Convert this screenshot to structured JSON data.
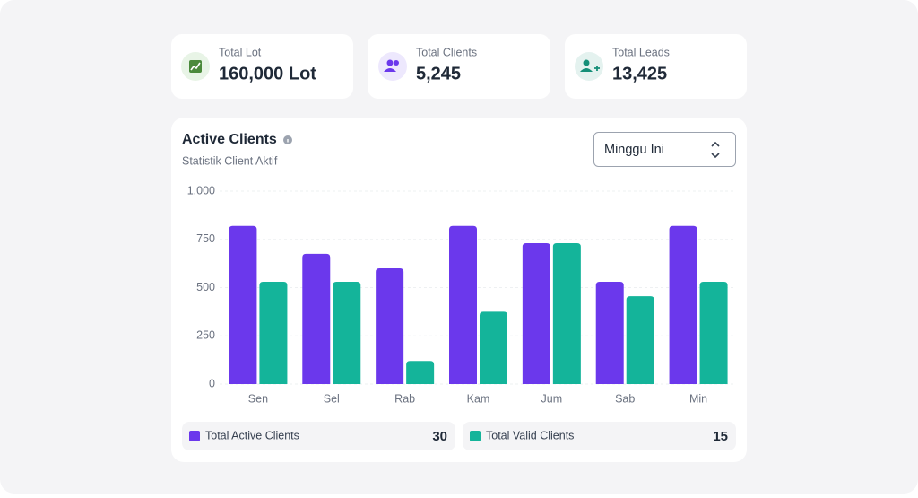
{
  "stats": [
    {
      "label": "Total Lot",
      "value": "160,000 Lot"
    },
    {
      "label": "Total Clients",
      "value": "5,245"
    },
    {
      "label": "Total Leads",
      "value": "13,425"
    }
  ],
  "dropdown": "Minggu Ini",
  "chart_data": {
    "type": "bar",
    "title": "Active Clients",
    "subtitle": "Statistik Client Aktif",
    "categories": [
      "Sen",
      "Sel",
      "Rab",
      "Kam",
      "Jum",
      "Sab",
      "Min"
    ],
    "series": [
      {
        "name": "Total Active Clients",
        "color": "#6b38ec",
        "total": 30,
        "values": [
          820,
          675,
          600,
          820,
          730,
          530,
          820
        ]
      },
      {
        "name": "Total Valid Clients",
        "color": "#14b49a",
        "total": 15,
        "values": [
          530,
          530,
          120,
          375,
          730,
          455,
          530
        ]
      }
    ],
    "ylim": [
      0,
      1000
    ],
    "yticks": [
      0,
      250,
      500,
      750,
      {
        "value": 1000,
        "label": "1.000"
      }
    ],
    "grid": true
  }
}
